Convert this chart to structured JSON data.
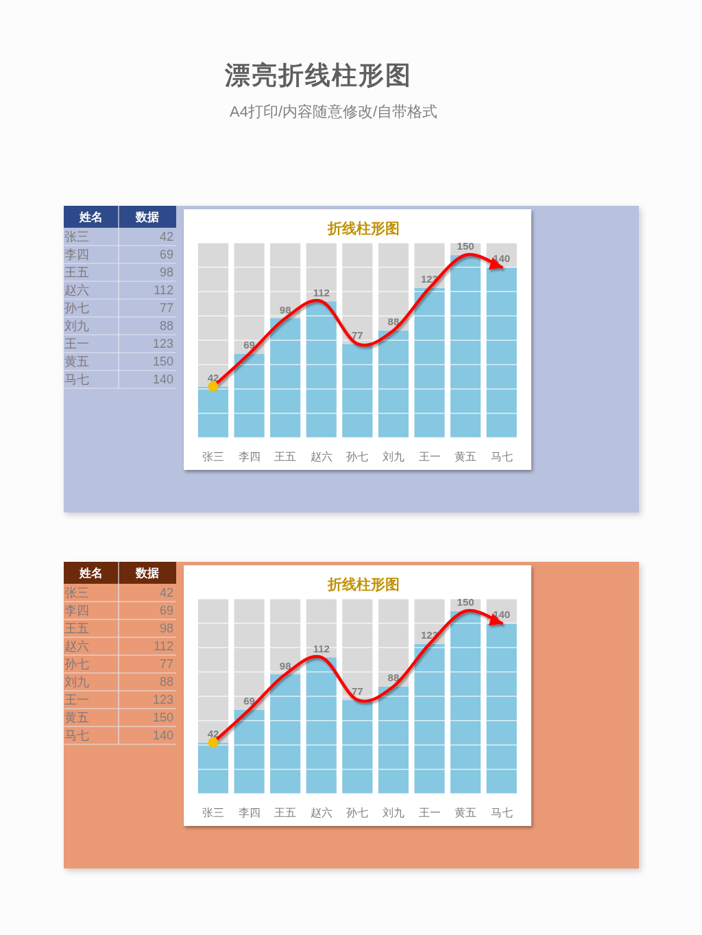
{
  "chart_data": [
    {
      "type": "other",
      "title": "漂亮折线柱形图",
      "subtitle": "A4打印/内容随意修改/自带格式"
    },
    {
      "type": "bar",
      "title": "折线柱形图",
      "categories": [
        "张三",
        "李四",
        "王五",
        "赵六",
        "孙七",
        "刘九",
        "王一",
        "黄五",
        "马七"
      ],
      "stacked": true,
      "series": [
        {
          "type": "bar",
          "color": "#86c7e1",
          "values": [
            42,
            69,
            98,
            112,
            77,
            88,
            123,
            150,
            140
          ],
          "value_labels": [
            "42",
            "69",
            "98",
            "112",
            "77",
            "88",
            "123",
            "150",
            "140"
          ]
        },
        {
          "type": "bar",
          "color": "#d9d9d9",
          "values": [
            118,
            91,
            62,
            48,
            83,
            72,
            37,
            10,
            20
          ]
        },
        {
          "type": "line",
          "color": "#ff0000",
          "values": [
            42,
            69,
            98,
            112,
            77,
            88,
            123,
            150,
            140
          ]
        },
        {
          "type": "scatter",
          "color": "#f5c000",
          "x": [
            "张三"
          ],
          "values": [
            42
          ],
          "marker": "circle"
        }
      ],
      "ylim": [
        0,
        160
      ],
      "yticks": [
        {
          "value": 0,
          "label": null
        },
        {
          "value": 20,
          "label": null
        },
        {
          "value": 40,
          "label": null
        },
        {
          "value": 60,
          "label": null
        },
        {
          "value": 80,
          "label": null
        },
        {
          "value": 100,
          "label": null
        },
        {
          "value": 120,
          "label": null
        },
        {
          "value": 140,
          "label": null
        },
        {
          "value": 160,
          "label": null
        }
      ],
      "tick_labels": "x",
      "grid": "y",
      "annotations": [
        "姓名",
        "数据"
      ]
    },
    {
      "type": "bar",
      "title": "折线柱形图",
      "categories": [
        "张三",
        "李四",
        "王五",
        "赵六",
        "孙七",
        "刘九",
        "王一",
        "黄五",
        "马七"
      ],
      "stacked": true,
      "series": [
        {
          "type": "bar",
          "color": "#86c7e1",
          "values": [
            42,
            69,
            98,
            112,
            77,
            88,
            123,
            150,
            140
          ],
          "value_labels": [
            "42",
            "69",
            "98",
            "112",
            "77",
            "88",
            "123",
            "150",
            "140"
          ]
        },
        {
          "type": "bar",
          "color": "#d9d9d9",
          "values": [
            118,
            91,
            62,
            48,
            83,
            72,
            37,
            10,
            20
          ]
        },
        {
          "type": "line",
          "color": "#ff0000",
          "values": [
            42,
            69,
            98,
            112,
            77,
            88,
            123,
            150,
            140
          ]
        },
        {
          "type": "scatter",
          "color": "#f5c000",
          "x": [
            "张三"
          ],
          "values": [
            42
          ],
          "marker": "circle"
        }
      ],
      "ylim": [
        0,
        160
      ],
      "yticks": [
        {
          "value": 0,
          "label": null
        },
        {
          "value": 20,
          "label": null
        },
        {
          "value": 40,
          "label": null
        },
        {
          "value": 60,
          "label": null
        },
        {
          "value": 80,
          "label": null
        },
        {
          "value": 100,
          "label": null
        },
        {
          "value": 120,
          "label": null
        },
        {
          "value": 140,
          "label": null
        },
        {
          "value": 160,
          "label": null
        }
      ],
      "tick_labels": "x",
      "grid": "y",
      "annotations": [
        "姓名",
        "数据"
      ]
    }
  ]
}
